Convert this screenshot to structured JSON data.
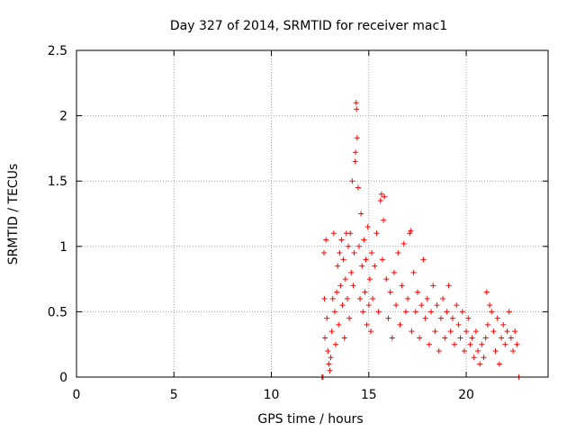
{
  "chart_data": {
    "type": "scatter",
    "title": "Day 327 of 2014, SRMTID for receiver mac1",
    "xlabel": "GPS time / hours",
    "ylabel": "SRMTID / TECUs",
    "xlim": [
      0,
      24.2
    ],
    "ylim": [
      0,
      2.5
    ],
    "xticks": [
      0,
      5,
      10,
      15,
      20
    ],
    "xtick_labels": [
      "0",
      "5",
      "10",
      "15",
      "20"
    ],
    "yticks": [
      0,
      0.5,
      1,
      1.5,
      2,
      2.5
    ],
    "ytick_labels": [
      "0",
      "0.5",
      "1",
      "1.5",
      "2",
      "2.5"
    ],
    "grid": true,
    "legend": "none",
    "marker": "+",
    "series": [
      {
        "name": "SRMTID",
        "color": "#ff0000",
        "points": [
          [
            12.6,
            0.0
          ],
          [
            12.65,
            0.0
          ],
          [
            12.7,
            0.95
          ],
          [
            12.72,
            0.6
          ],
          [
            12.75,
            0.3
          ],
          [
            12.8,
            1.05
          ],
          [
            12.85,
            0.45
          ],
          [
            12.9,
            0.2
          ],
          [
            12.95,
            0.1
          ],
          [
            13.0,
            0.05
          ],
          [
            13.05,
            0.15
          ],
          [
            13.1,
            0.35
          ],
          [
            13.15,
            0.6
          ],
          [
            13.2,
            1.1
          ],
          [
            13.25,
            0.5
          ],
          [
            13.3,
            0.25
          ],
          [
            13.35,
            0.65
          ],
          [
            13.4,
            0.85
          ],
          [
            13.45,
            0.4
          ],
          [
            13.5,
            0.95
          ],
          [
            13.55,
            0.7
          ],
          [
            13.6,
            1.05
          ],
          [
            13.65,
            0.55
          ],
          [
            13.7,
            0.9
          ],
          [
            13.75,
            0.3
          ],
          [
            13.8,
            0.75
          ],
          [
            13.85,
            1.1
          ],
          [
            13.9,
            0.6
          ],
          [
            13.95,
            1.0
          ],
          [
            14.0,
            0.45
          ],
          [
            14.05,
            1.1
          ],
          [
            14.1,
            0.8
          ],
          [
            14.15,
            1.5
          ],
          [
            14.2,
            0.7
          ],
          [
            14.25,
            0.95
          ],
          [
            14.3,
            1.65
          ],
          [
            14.32,
            1.72
          ],
          [
            14.35,
            2.1
          ],
          [
            14.37,
            2.05
          ],
          [
            14.4,
            1.83
          ],
          [
            14.45,
            1.45
          ],
          [
            14.5,
            1.0
          ],
          [
            14.55,
            0.6
          ],
          [
            14.6,
            1.25
          ],
          [
            14.65,
            0.85
          ],
          [
            14.7,
            0.5
          ],
          [
            14.75,
            1.05
          ],
          [
            14.8,
            0.65
          ],
          [
            14.85,
            0.9
          ],
          [
            14.9,
            0.4
          ],
          [
            14.95,
            1.15
          ],
          [
            15.0,
            0.55
          ],
          [
            15.05,
            0.75
          ],
          [
            15.1,
            0.35
          ],
          [
            15.15,
            0.95
          ],
          [
            15.2,
            0.6
          ],
          [
            15.3,
            0.85
          ],
          [
            15.4,
            1.1
          ],
          [
            15.5,
            0.5
          ],
          [
            15.6,
            1.35
          ],
          [
            15.65,
            1.4
          ],
          [
            15.7,
            0.9
          ],
          [
            15.75,
            1.2
          ],
          [
            15.8,
            1.38
          ],
          [
            15.9,
            0.75
          ],
          [
            16.0,
            0.45
          ],
          [
            16.1,
            0.65
          ],
          [
            16.2,
            0.3
          ],
          [
            16.3,
            0.8
          ],
          [
            16.4,
            0.55
          ],
          [
            16.5,
            0.95
          ],
          [
            16.6,
            0.4
          ],
          [
            16.7,
            0.7
          ],
          [
            16.8,
            1.02
          ],
          [
            16.9,
            0.5
          ],
          [
            17.0,
            0.6
          ],
          [
            17.1,
            1.1
          ],
          [
            17.15,
            1.12
          ],
          [
            17.2,
            0.35
          ],
          [
            17.3,
            0.8
          ],
          [
            17.4,
            0.5
          ],
          [
            17.5,
            0.65
          ],
          [
            17.6,
            0.3
          ],
          [
            17.7,
            0.55
          ],
          [
            17.8,
            0.9
          ],
          [
            17.9,
            0.45
          ],
          [
            18.0,
            0.6
          ],
          [
            18.1,
            0.25
          ],
          [
            18.2,
            0.5
          ],
          [
            18.3,
            0.7
          ],
          [
            18.4,
            0.35
          ],
          [
            18.5,
            0.55
          ],
          [
            18.6,
            0.2
          ],
          [
            18.7,
            0.45
          ],
          [
            18.8,
            0.6
          ],
          [
            18.9,
            0.3
          ],
          [
            19.0,
            0.5
          ],
          [
            19.1,
            0.7
          ],
          [
            19.2,
            0.35
          ],
          [
            19.3,
            0.45
          ],
          [
            19.4,
            0.25
          ],
          [
            19.5,
            0.55
          ],
          [
            19.6,
            0.4
          ],
          [
            19.7,
            0.3
          ],
          [
            19.8,
            0.5
          ],
          [
            19.9,
            0.2
          ],
          [
            20.0,
            0.35
          ],
          [
            20.1,
            0.45
          ],
          [
            20.2,
            0.25
          ],
          [
            20.3,
            0.3
          ],
          [
            20.4,
            0.15
          ],
          [
            20.5,
            0.35
          ],
          [
            20.6,
            0.2
          ],
          [
            20.7,
            0.1
          ],
          [
            20.8,
            0.25
          ],
          [
            20.9,
            0.15
          ],
          [
            21.0,
            0.3
          ],
          [
            21.05,
            0.65
          ],
          [
            21.1,
            0.4
          ],
          [
            21.2,
            0.55
          ],
          [
            21.3,
            0.5
          ],
          [
            21.4,
            0.35
          ],
          [
            21.5,
            0.2
          ],
          [
            21.6,
            0.45
          ],
          [
            21.7,
            0.1
          ],
          [
            21.8,
            0.3
          ],
          [
            21.9,
            0.4
          ],
          [
            22.0,
            0.25
          ],
          [
            22.1,
            0.35
          ],
          [
            22.2,
            0.5
          ],
          [
            22.3,
            0.3
          ],
          [
            22.4,
            0.2
          ],
          [
            22.5,
            0.35
          ],
          [
            22.6,
            0.25
          ],
          [
            22.7,
            0.0
          ]
        ]
      }
    ]
  }
}
